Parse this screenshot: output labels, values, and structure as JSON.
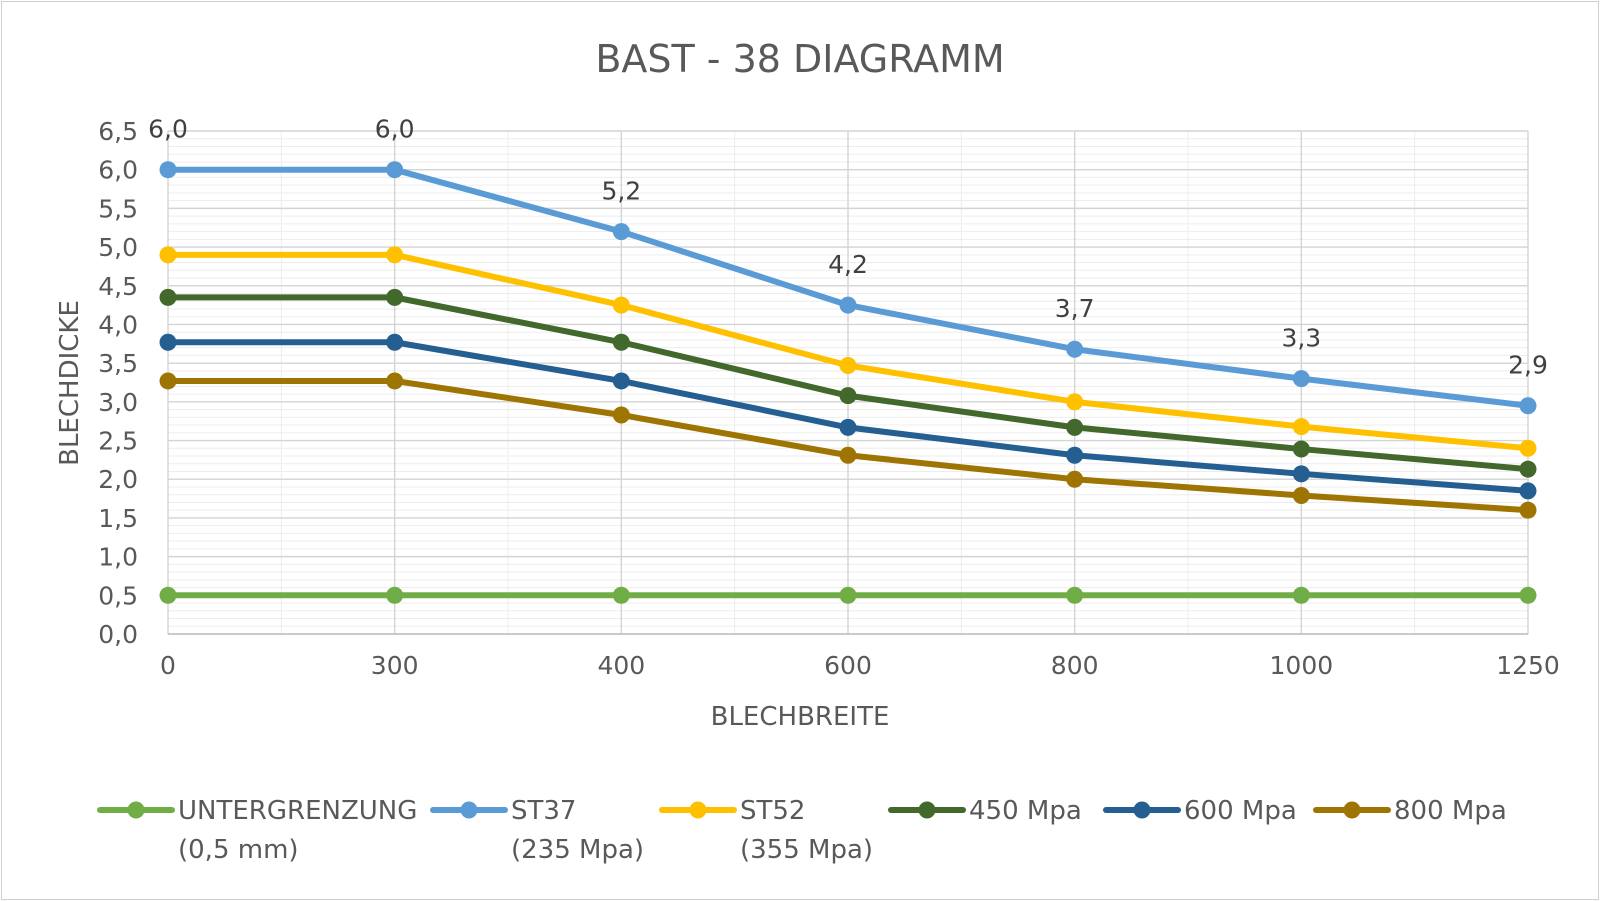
{
  "chart_data": {
    "type": "line",
    "title": "BAST - 38 DIAGRAMM",
    "xlabel": "BLECHBREITE",
    "ylabel": "BLECHDICKE",
    "categories": [
      "0",
      "300",
      "400",
      "600",
      "800",
      "1000",
      "1250"
    ],
    "ylim": [
      0,
      6.5
    ],
    "ystep": 0.5,
    "yticks": [
      "0,0",
      "0,5",
      "1,0",
      "1,5",
      "2,0",
      "2,5",
      "3,0",
      "3,5",
      "4,0",
      "4,5",
      "5,0",
      "5,5",
      "6,0",
      "6,5"
    ],
    "grid": true,
    "legend_position": "bottom",
    "series": [
      {
        "name_line1": "UNTERGRENZUNG",
        "name_line2": "(0,5 mm)",
        "color": "#70ad47",
        "values": [
          0.5,
          0.5,
          0.5,
          0.5,
          0.5,
          0.5,
          0.5
        ]
      },
      {
        "name_line1": "ST37",
        "name_line2": "(235 Mpa)",
        "color": "#5b9bd5",
        "values": [
          6.0,
          6.0,
          5.2,
          4.25,
          3.68,
          3.3,
          2.95
        ],
        "labels": [
          "6,0",
          "6,0",
          "5,2",
          "4,2",
          "3,7",
          "3,3",
          "2,9"
        ]
      },
      {
        "name_line1": "ST52",
        "name_line2": "(355 Mpa)",
        "color": "#ffc000",
        "values": [
          4.9,
          4.9,
          4.25,
          3.47,
          3.0,
          2.68,
          2.4
        ]
      },
      {
        "name_line1": "450  Mpa",
        "name_line2": "",
        "color": "#43682b",
        "values": [
          4.35,
          4.35,
          3.77,
          3.08,
          2.67,
          2.39,
          2.13
        ]
      },
      {
        "name_line1": "600 Mpa",
        "name_line2": "",
        "color": "#255e91",
        "values": [
          3.77,
          3.77,
          3.27,
          2.67,
          2.31,
          2.07,
          1.85
        ]
      },
      {
        "name_line1": "800 Mpa",
        "name_line2": "",
        "color": "#9e7502",
        "values": [
          3.27,
          3.27,
          2.83,
          2.31,
          2.0,
          1.79,
          1.6
        ]
      }
    ]
  }
}
